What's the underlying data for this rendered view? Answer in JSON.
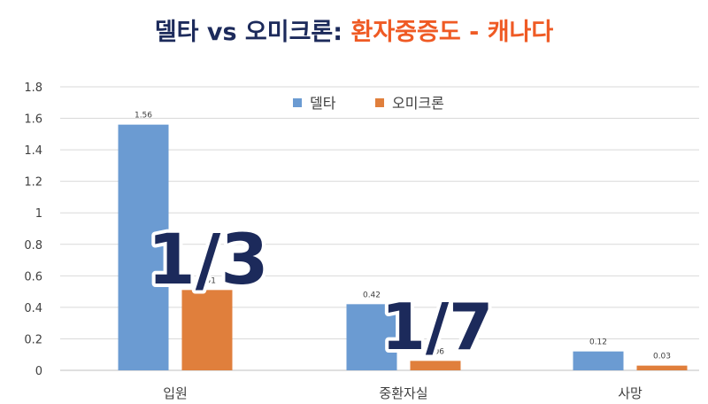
{
  "title": {
    "part1": "델타 vs 오미크론: ",
    "part2": "환자중증도 - ",
    "part3": "캐나다"
  },
  "colors": {
    "title_navy": "#1c2a5b",
    "title_orange": "#ef5a24",
    "delta": "#6b9bd2",
    "omicron": "#e07f3c",
    "annotation": "#1c2a5b"
  },
  "annotations": [
    "1/3",
    "1/7"
  ],
  "chart_data": {
    "type": "bar",
    "categories": [
      "입원",
      "중환자실",
      "사망"
    ],
    "series": [
      {
        "name": "델타",
        "values": [
          1.56,
          0.42,
          0.12
        ]
      },
      {
        "name": "오미크론",
        "values": [
          0.51,
          0.06,
          0.03
        ]
      }
    ],
    "data_labels": [
      [
        "1.56",
        "0.42",
        "0.12"
      ],
      [
        "0.51",
        "0.06",
        "0.03"
      ]
    ],
    "yticks": [
      "0",
      "0.2",
      "0.4",
      "0.6",
      "0.8",
      "1",
      "1.2",
      "1.4",
      "1.6",
      "1.8"
    ],
    "ylim": [
      0,
      1.8
    ],
    "grid": true,
    "legend_position": "top-center"
  }
}
